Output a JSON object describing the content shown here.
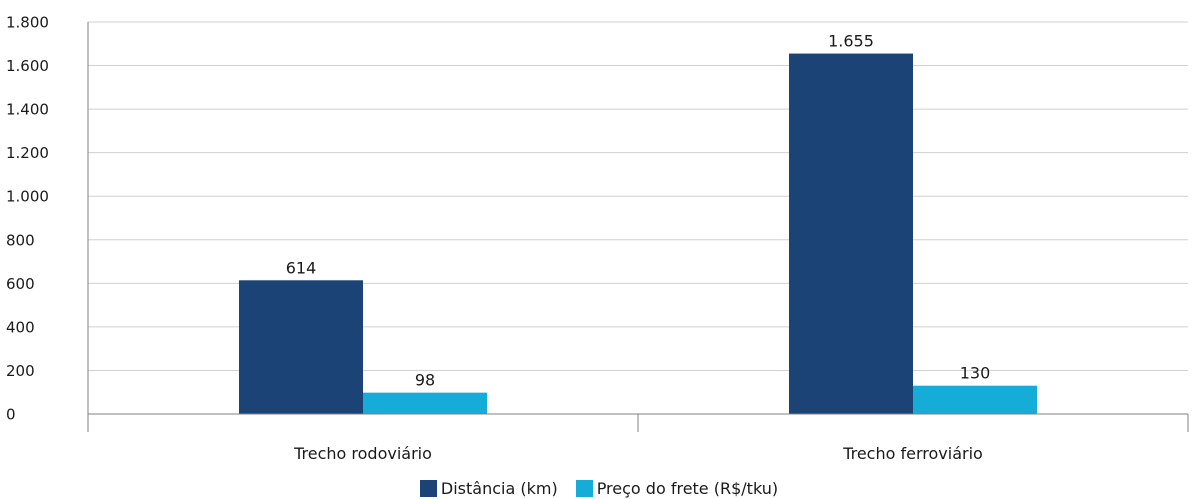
{
  "chart_data": {
    "type": "bar",
    "categories": [
      "Trecho rodoviário",
      "Trecho ferroviário"
    ],
    "series": [
      {
        "name": "Distância (km)",
        "values": [
          614,
          1655
        ],
        "color": "#1b4376"
      },
      {
        "name": "Preço do frete (R$/tku)",
        "values": [
          98,
          130
        ],
        "color": "#16acd8"
      }
    ],
    "data_labels": [
      [
        "614",
        "1.655"
      ],
      [
        "98",
        "130"
      ]
    ],
    "yticks": [
      0,
      200,
      400,
      600,
      800,
      1000,
      1200,
      1400,
      1600,
      1800
    ],
    "ytick_labels": [
      "0",
      "200",
      "400",
      "600",
      "800",
      "1.000",
      "1.200",
      "1.400",
      "1.600",
      "1.800"
    ],
    "ylim": [
      0,
      1800
    ],
    "grid": true,
    "legend_position": "bottom"
  }
}
